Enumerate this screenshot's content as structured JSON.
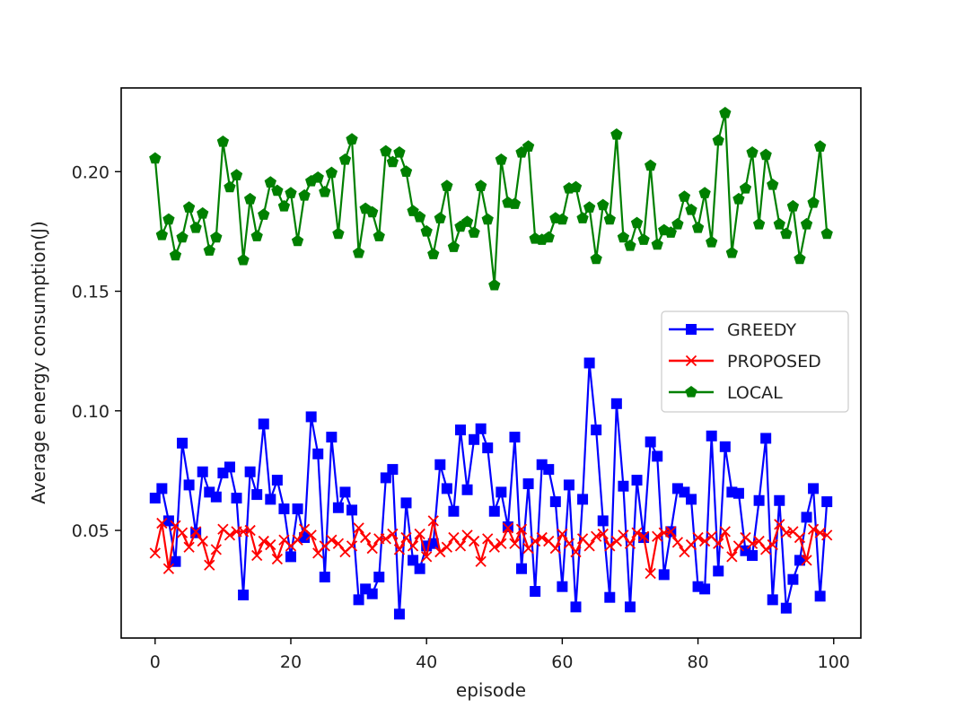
{
  "chart_data": {
    "type": "line",
    "title": "",
    "xlabel": "episode",
    "ylabel": "Average energy consumption(J)",
    "xlim": [
      -5,
      104
    ],
    "ylim": [
      0.005,
      0.235
    ],
    "xticks": [
      0,
      20,
      40,
      60,
      80,
      100
    ],
    "xtick_labels": [
      "0",
      "20",
      "40",
      "60",
      "80",
      "100"
    ],
    "yticks": [
      0.05,
      0.1,
      0.15,
      0.2
    ],
    "ytick_labels": [
      "0.05",
      "0.10",
      "0.15",
      "0.20"
    ],
    "grid": false,
    "legend_position": "center-right",
    "x": [
      0,
      1,
      2,
      3,
      4,
      5,
      6,
      7,
      8,
      9,
      10,
      11,
      12,
      13,
      14,
      15,
      16,
      17,
      18,
      19,
      20,
      21,
      22,
      23,
      24,
      25,
      26,
      27,
      28,
      29,
      30,
      31,
      32,
      33,
      34,
      35,
      36,
      37,
      38,
      39,
      40,
      41,
      42,
      43,
      44,
      45,
      46,
      47,
      48,
      49,
      50,
      51,
      52,
      53,
      54,
      55,
      56,
      57,
      58,
      59,
      60,
      61,
      62,
      63,
      64,
      65,
      66,
      67,
      68,
      69,
      70,
      71,
      72,
      73,
      74,
      75,
      76,
      77,
      78,
      79,
      80,
      81,
      82,
      83,
      84,
      85,
      86,
      87,
      88,
      89,
      90,
      91,
      92,
      93,
      94,
      95,
      96,
      97,
      98,
      99
    ],
    "series": [
      {
        "name": "GREEDY",
        "color": "#0000ff",
        "marker": "square",
        "values": [
          0.0635,
          0.0675,
          0.054,
          0.037,
          0.0865,
          0.069,
          0.049,
          0.0745,
          0.066,
          0.064,
          0.074,
          0.0765,
          0.0635,
          0.023,
          0.0745,
          0.065,
          0.0945,
          0.063,
          0.071,
          0.059,
          0.039,
          0.059,
          0.047,
          0.0975,
          0.082,
          0.0305,
          0.089,
          0.0595,
          0.066,
          0.0585,
          0.021,
          0.0255,
          0.0235,
          0.0305,
          0.072,
          0.0755,
          0.015,
          0.0615,
          0.0375,
          0.034,
          0.0435,
          0.0445,
          0.0775,
          0.0675,
          0.058,
          0.092,
          0.067,
          0.088,
          0.0925,
          0.0845,
          0.058,
          0.066,
          0.0515,
          0.089,
          0.034,
          0.0695,
          0.0245,
          0.0775,
          0.0755,
          0.062,
          0.0265,
          0.069,
          0.018,
          0.063,
          0.12,
          0.092,
          0.054,
          0.022,
          0.103,
          0.0685,
          0.018,
          0.071,
          0.047,
          0.087,
          0.081,
          0.0315,
          0.0495,
          0.0675,
          0.066,
          0.063,
          0.0265,
          0.0255,
          0.0895,
          0.033,
          0.085,
          0.066,
          0.0655,
          0.0415,
          0.0395,
          0.0625,
          0.0885,
          0.021,
          0.0625,
          0.0175,
          0.0295,
          0.0375,
          0.0555,
          0.0675,
          0.0225,
          0.062
        ]
      },
      {
        "name": "PROPOSED",
        "color": "#ff0000",
        "marker": "x",
        "values": [
          0.0405,
          0.053,
          0.034,
          0.052,
          0.049,
          0.043,
          0.0495,
          0.0455,
          0.0355,
          0.042,
          0.0505,
          0.048,
          0.0495,
          0.0495,
          0.05,
          0.0395,
          0.0455,
          0.044,
          0.038,
          0.046,
          0.0435,
          0.046,
          0.0505,
          0.048,
          0.0405,
          0.0435,
          0.046,
          0.0445,
          0.041,
          0.0435,
          0.051,
          0.047,
          0.0425,
          0.0465,
          0.0465,
          0.0485,
          0.042,
          0.047,
          0.0435,
          0.0485,
          0.039,
          0.054,
          0.041,
          0.043,
          0.047,
          0.0435,
          0.048,
          0.0455,
          0.037,
          0.0465,
          0.043,
          0.0445,
          0.051,
          0.0445,
          0.0505,
          0.0425,
          0.0455,
          0.047,
          0.0455,
          0.0425,
          0.0485,
          0.0445,
          0.041,
          0.0465,
          0.0435,
          0.0475,
          0.0485,
          0.0435,
          0.0455,
          0.048,
          0.0445,
          0.049,
          0.0475,
          0.032,
          0.0475,
          0.049,
          0.0495,
          0.045,
          0.041,
          0.044,
          0.047,
          0.0455,
          0.0475,
          0.0445,
          0.0495,
          0.039,
          0.0435,
          0.047,
          0.0445,
          0.0455,
          0.042,
          0.044,
          0.0525,
          0.049,
          0.0495,
          0.047,
          0.0375,
          0.0505,
          0.049,
          0.048
        ]
      },
      {
        "name": "LOCAL",
        "color": "#008000",
        "marker": "pentagon",
        "values": [
          0.2055,
          0.1735,
          0.18,
          0.165,
          0.1725,
          0.185,
          0.1765,
          0.1825,
          0.167,
          0.1725,
          0.2125,
          0.1935,
          0.1985,
          0.163,
          0.1885,
          0.173,
          0.182,
          0.1955,
          0.192,
          0.1855,
          0.191,
          0.171,
          0.19,
          0.196,
          0.1975,
          0.1915,
          0.1995,
          0.174,
          0.205,
          0.2135,
          0.166,
          0.1845,
          0.183,
          0.173,
          0.2085,
          0.204,
          0.208,
          0.2,
          0.1835,
          0.181,
          0.175,
          0.1655,
          0.1805,
          0.194,
          0.1685,
          0.177,
          0.179,
          0.1745,
          0.194,
          0.18,
          0.1525,
          0.205,
          0.187,
          0.1865,
          0.208,
          0.2105,
          0.172,
          0.1715,
          0.1725,
          0.1805,
          0.18,
          0.193,
          0.1935,
          0.1805,
          0.185,
          0.1635,
          0.186,
          0.18,
          0.2155,
          0.1725,
          0.169,
          0.1785,
          0.1715,
          0.2025,
          0.1695,
          0.1755,
          0.1745,
          0.178,
          0.1895,
          0.184,
          0.1765,
          0.191,
          0.1705,
          0.213,
          0.2245,
          0.166,
          0.1885,
          0.193,
          0.208,
          0.178,
          0.207,
          0.1945,
          0.178,
          0.174,
          0.1855,
          0.1635,
          0.178,
          0.187,
          0.2105,
          0.174
        ]
      }
    ]
  }
}
